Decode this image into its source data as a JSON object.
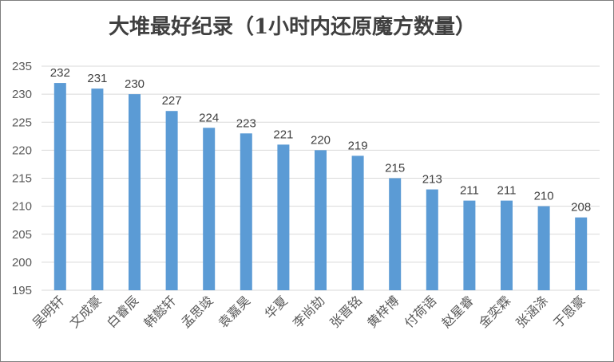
{
  "chart_data": {
    "type": "bar",
    "title": "大堆最好纪录（1小时内还原魔方数量）",
    "xlabel": "",
    "ylabel": "",
    "ylim": [
      195,
      235
    ],
    "yticks": [
      195,
      200,
      205,
      210,
      215,
      220,
      225,
      230,
      235
    ],
    "categories": [
      "吴明轩",
      "文成豪",
      "白睿辰",
      "韩懿轩",
      "孟思竣",
      "袁嘉昊",
      "华夏",
      "李尚劼",
      "张晋铭",
      "黄梓博",
      "付荷语",
      "赵星睿",
      "金奕霖",
      "张涵涤",
      "于恩豪"
    ],
    "values": [
      232,
      231,
      230,
      227,
      224,
      223,
      221,
      220,
      219,
      215,
      213,
      211,
      211,
      210,
      208
    ],
    "bar_color": "#5B9BD5",
    "grid": true,
    "legend": "none"
  }
}
